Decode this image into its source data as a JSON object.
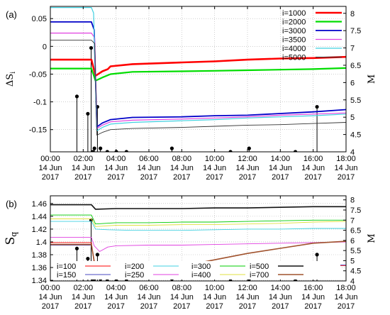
{
  "chart_data": [
    {
      "type": "line",
      "panel_label": "(a)",
      "ylabel": "ΔS",
      "ylabel_sub": "i",
      "y2label": "M",
      "xlim": [
        "2017-06-14 00:00",
        "2017-06-14 18:00"
      ],
      "ylim": [
        -0.19,
        0.072
      ],
      "y2lim": [
        4.0,
        8.2
      ],
      "y_ticks": [
        0.05,
        0,
        -0.05,
        -0.1,
        -0.15
      ],
      "y_tick_labels": [
        "0.05",
        "0",
        "-0.05",
        "-0.1",
        "-0.15"
      ],
      "y2_ticks": [
        4,
        4.5,
        5,
        5.5,
        6,
        6.5,
        7,
        7.5,
        8
      ],
      "y2_tick_labels": [
        "4",
        "4.5",
        "5",
        "5.5",
        "6",
        "6.5",
        "7",
        "7.5",
        "8"
      ],
      "x_ticks": [
        "00:00",
        "02:00",
        "04:00",
        "06:00",
        "08:00",
        "10:00",
        "12:00",
        "14:00",
        "16:00",
        "18:00"
      ],
      "x_tick_date": "14 Jun",
      "x_tick_year": "2017",
      "grid": true,
      "legend": "top-right",
      "series": [
        {
          "name": "i=1000",
          "color": "#ff0000",
          "width": 2.6,
          "points": [
            [
              "00:00",
              -0.024
            ],
            [
              "02:30",
              -0.024
            ],
            [
              "02:45",
              -0.053
            ],
            [
              "03:10",
              -0.045
            ],
            [
              "03:30",
              -0.041
            ],
            [
              "03:40",
              -0.036
            ],
            [
              "05:00",
              -0.032
            ],
            [
              "08:00",
              -0.029
            ],
            [
              "10:00",
              -0.027
            ],
            [
              "12:00",
              -0.024
            ],
            [
              "14:00",
              -0.022
            ],
            [
              "16:00",
              -0.021
            ],
            [
              "18:00",
              -0.019
            ]
          ]
        },
        {
          "name": "i=2000",
          "color": "#00dd00",
          "width": 2.2,
          "points": [
            [
              "00:00",
              -0.04
            ],
            [
              "02:30",
              -0.04
            ],
            [
              "02:45",
              -0.062
            ],
            [
              "03:10",
              -0.056
            ],
            [
              "03:40",
              -0.05
            ],
            [
              "05:00",
              -0.046
            ],
            [
              "08:00",
              -0.045
            ],
            [
              "10:00",
              -0.044
            ],
            [
              "12:00",
              -0.043
            ],
            [
              "14:00",
              -0.042
            ],
            [
              "16:00",
              -0.041
            ],
            [
              "18:00",
              -0.039
            ]
          ]
        },
        {
          "name": "i=3000",
          "color": "#0000c8",
          "width": 1.8,
          "points": [
            [
              "00:00",
              0.044
            ],
            [
              "02:30",
              0.044
            ],
            [
              "02:40",
              0.03
            ],
            [
              "02:50",
              -0.145
            ],
            [
              "03:10",
              -0.138
            ],
            [
              "03:40",
              -0.132
            ],
            [
              "05:00",
              -0.128
            ],
            [
              "08:00",
              -0.127
            ],
            [
              "10:00",
              -0.125
            ],
            [
              "12:00",
              -0.124
            ],
            [
              "14:00",
              -0.121
            ],
            [
              "16:00",
              -0.118
            ],
            [
              "18:00",
              -0.114
            ]
          ]
        },
        {
          "name": "i=3500",
          "color": "#e040e0",
          "width": 1.2,
          "points": [
            [
              "00:00",
              0.024
            ],
            [
              "02:30",
              0.024
            ],
            [
              "02:42",
              0.015
            ],
            [
              "02:50",
              -0.148
            ],
            [
              "03:10",
              -0.142
            ],
            [
              "03:40",
              -0.136
            ],
            [
              "05:00",
              -0.133
            ],
            [
              "08:00",
              -0.131
            ],
            [
              "10:00",
              -0.129
            ],
            [
              "12:00",
              -0.127
            ],
            [
              "14:00",
              -0.124
            ],
            [
              "16:00",
              -0.122
            ],
            [
              "18:00",
              -0.12
            ]
          ]
        },
        {
          "name": "i=4000",
          "color": "#40d0e0",
          "width": 1.2,
          "points": [
            [
              "00:00",
              0.07
            ],
            [
              "02:30",
              0.07
            ],
            [
              "02:38",
              0.06
            ],
            [
              "02:50",
              -0.152
            ],
            [
              "03:10",
              -0.146
            ],
            [
              "03:40",
              -0.14
            ],
            [
              "05:00",
              -0.137
            ],
            [
              "08:00",
              -0.134
            ],
            [
              "10:00",
              -0.132
            ],
            [
              "12:00",
              -0.129
            ],
            [
              "14:00",
              -0.127
            ],
            [
              "16:00",
              -0.125
            ],
            [
              "18:00",
              -0.122
            ]
          ]
        },
        {
          "name": "i=5000",
          "color": "#333333",
          "width": 0.9,
          "points": [
            [
              "00:00",
              0.011
            ],
            [
              "02:30",
              0.011
            ],
            [
              "02:42",
              0.005
            ],
            [
              "02:50",
              -0.16
            ],
            [
              "03:10",
              -0.155
            ],
            [
              "03:40",
              -0.15
            ],
            [
              "05:00",
              -0.148
            ],
            [
              "08:00",
              -0.146
            ],
            [
              "10:00",
              -0.144
            ],
            [
              "12:00",
              -0.142
            ],
            [
              "14:00",
              -0.141
            ],
            [
              "16:00",
              -0.139
            ],
            [
              "18:00",
              -0.137
            ]
          ]
        }
      ],
      "earthquakes": [
        {
          "time": "01:37",
          "M": 5.6
        },
        {
          "time": "02:17",
          "M": 5.1
        },
        {
          "time": "02:29",
          "M": 7.0
        },
        {
          "time": "02:35",
          "M": 4.0
        },
        {
          "time": "02:41",
          "M": 4.1
        },
        {
          "time": "02:52",
          "M": 5.3
        },
        {
          "time": "03:03",
          "M": 4.1
        },
        {
          "time": "03:28",
          "M": 4.0
        },
        {
          "time": "04:01",
          "M": 4.0
        },
        {
          "time": "04:38",
          "M": 4.0
        },
        {
          "time": "07:24",
          "M": 4.1
        },
        {
          "time": "10:58",
          "M": 4.0
        },
        {
          "time": "12:06",
          "M": 4.1
        },
        {
          "time": "14:55",
          "M": 4.0
        },
        {
          "time": "16:14",
          "M": 5.3
        }
      ]
    },
    {
      "type": "line",
      "panel_label": "(b)",
      "ylabel": "S",
      "ylabel_sub": "q",
      "y2label": "M",
      "xlim": [
        "2017-06-14 00:00",
        "2017-06-14 18:00"
      ],
      "ylim": [
        1.339,
        1.472
      ],
      "y2lim": [
        4.0,
        8.2
      ],
      "y_ticks": [
        1.46,
        1.44,
        1.42,
        1.4,
        1.38,
        1.36,
        1.34
      ],
      "y_tick_labels": [
        "1.46",
        "1.44",
        "1.42",
        "1.4",
        "1.38",
        "1.36",
        "1.34"
      ],
      "y2_ticks": [
        4,
        4.5,
        5,
        5.5,
        6,
        6.5,
        7,
        7.5,
        8
      ],
      "y2_tick_labels": [
        "4",
        "4.5",
        "5",
        "5.5",
        "6",
        "6.5",
        "7",
        "7.5",
        "8"
      ],
      "x_ticks": [
        "00:00",
        "02:00",
        "04:00",
        "06:00",
        "08:00",
        "10:00",
        "12:00",
        "14:00",
        "16:00",
        "18:00"
      ],
      "x_tick_date": "14 Jun",
      "x_tick_year": "2017",
      "grid": true,
      "legend": "bottom",
      "series": [
        {
          "name": "i=100",
          "color": "#ff0000",
          "width": 0.9,
          "points": [
            [
              "00:00",
              1.399
            ],
            [
              "02:30",
              1.399
            ],
            [
              "02:45",
              1.35
            ],
            [
              "03:10",
              1.356
            ],
            [
              "04:00",
              1.358
            ],
            [
              "06:00",
              1.36
            ],
            [
              "08:00",
              1.361
            ],
            [
              "10:00",
              1.362
            ],
            [
              "12:00",
              1.362
            ],
            [
              "14:00",
              1.363
            ],
            [
              "16:00",
              1.363
            ],
            [
              "18:00",
              1.363
            ]
          ]
        },
        {
          "name": "i=150",
          "color": "#4a4ac0",
          "width": 0.9,
          "points": [
            [
              "00:00",
              1.395
            ],
            [
              "02:30",
              1.395
            ],
            [
              "02:45",
              1.355
            ],
            [
              "03:10",
              1.36
            ],
            [
              "04:00",
              1.361
            ],
            [
              "06:00",
              1.362
            ],
            [
              "08:00",
              1.363
            ],
            [
              "10:00",
              1.363
            ],
            [
              "12:00",
              1.364
            ],
            [
              "14:00",
              1.364
            ],
            [
              "16:00",
              1.364
            ],
            [
              "18:00",
              1.364
            ]
          ]
        },
        {
          "name": "i=200",
          "color": "#40d0e0",
          "width": 0.9,
          "points": [
            [
              "00:00",
              1.432
            ],
            [
              "02:30",
              1.432
            ],
            [
              "02:45",
              1.42
            ],
            [
              "03:30",
              1.419
            ],
            [
              "05:00",
              1.418
            ],
            [
              "08:00",
              1.418
            ],
            [
              "10:00",
              1.419
            ],
            [
              "12:00",
              1.42
            ],
            [
              "14:00",
              1.42
            ],
            [
              "16:00",
              1.421
            ],
            [
              "18:00",
              1.421
            ]
          ]
        },
        {
          "name": "i=250",
          "color": "#e040e0",
          "width": 0.9,
          "points": [
            [
              "00:00",
              1.407
            ],
            [
              "02:30",
              1.407
            ],
            [
              "02:40",
              1.394
            ],
            [
              "03:00",
              1.385
            ],
            [
              "03:30",
              1.392
            ],
            [
              "04:00",
              1.394
            ],
            [
              "06:00",
              1.395
            ],
            [
              "08:00",
              1.395
            ],
            [
              "10:00",
              1.396
            ],
            [
              "12:00",
              1.397
            ],
            [
              "14:00",
              1.398
            ],
            [
              "16:00",
              1.399
            ],
            [
              "18:00",
              1.4
            ]
          ]
        },
        {
          "name": "i=300",
          "color": "#00cc00",
          "width": 0.9,
          "points": [
            [
              "00:00",
              1.442
            ],
            [
              "02:30",
              1.442
            ],
            [
              "02:45",
              1.428
            ],
            [
              "04:00",
              1.43
            ],
            [
              "06:00",
              1.43
            ],
            [
              "08:00",
              1.431
            ],
            [
              "10:00",
              1.431
            ],
            [
              "12:00",
              1.432
            ],
            [
              "14:00",
              1.433
            ],
            [
              "16:00",
              1.434
            ],
            [
              "18:00",
              1.434
            ]
          ]
        },
        {
          "name": "i=400",
          "color": "#e0e040",
          "width": 0.9,
          "points": [
            [
              "00:00",
              1.436
            ],
            [
              "02:30",
              1.436
            ],
            [
              "02:45",
              1.424
            ],
            [
              "04:00",
              1.426
            ],
            [
              "06:00",
              1.426
            ],
            [
              "08:00",
              1.427
            ],
            [
              "10:00",
              1.427
            ],
            [
              "12:00",
              1.428
            ],
            [
              "14:00",
              1.429
            ],
            [
              "16:00",
              1.431
            ],
            [
              "18:00",
              1.432
            ]
          ]
        },
        {
          "name": "i=500",
          "color": "#111111",
          "width": 1.6,
          "points": [
            [
              "00:00",
              1.458
            ],
            [
              "02:30",
              1.458
            ],
            [
              "02:45",
              1.451
            ],
            [
              "04:00",
              1.452
            ],
            [
              "06:00",
              1.452
            ],
            [
              "08:00",
              1.452
            ],
            [
              "10:00",
              1.453
            ],
            [
              "12:00",
              1.453
            ],
            [
              "14:00",
              1.454
            ],
            [
              "16:00",
              1.455
            ],
            [
              "18:00",
              1.455
            ]
          ]
        },
        {
          "name": "i=700",
          "color": "#a0522d",
          "width": 1.6,
          "points": [
            [
              "00:00",
              1.396
            ],
            [
              "02:30",
              1.396
            ],
            [
              "02:40",
              1.37
            ],
            [
              "02:55",
              1.358
            ],
            [
              "03:30",
              1.356
            ],
            [
              "04:00",
              1.357
            ],
            [
              "06:00",
              1.36
            ],
            [
              "08:00",
              1.362
            ],
            [
              "10:00",
              1.372
            ],
            [
              "12:00",
              1.382
            ],
            [
              "14:00",
              1.39
            ],
            [
              "16:00",
              1.398
            ],
            [
              "18:00",
              1.401
            ]
          ]
        }
      ],
      "earthquakes": [
        {
          "time": "01:37",
          "M": 5.6
        },
        {
          "time": "02:17",
          "M": 5.1
        },
        {
          "time": "02:29",
          "M": 7.0
        },
        {
          "time": "02:35",
          "M": 4.0
        },
        {
          "time": "02:41",
          "M": 4.1
        },
        {
          "time": "02:52",
          "M": 5.3
        },
        {
          "time": "03:03",
          "M": 4.1
        },
        {
          "time": "03:28",
          "M": 4.0
        },
        {
          "time": "04:01",
          "M": 4.0
        },
        {
          "time": "04:38",
          "M": 4.0
        },
        {
          "time": "07:24",
          "M": 4.1
        },
        {
          "time": "10:58",
          "M": 4.0
        },
        {
          "time": "12:06",
          "M": 4.1
        },
        {
          "time": "14:55",
          "M": 4.0
        },
        {
          "time": "16:14",
          "M": 5.3
        }
      ]
    }
  ]
}
